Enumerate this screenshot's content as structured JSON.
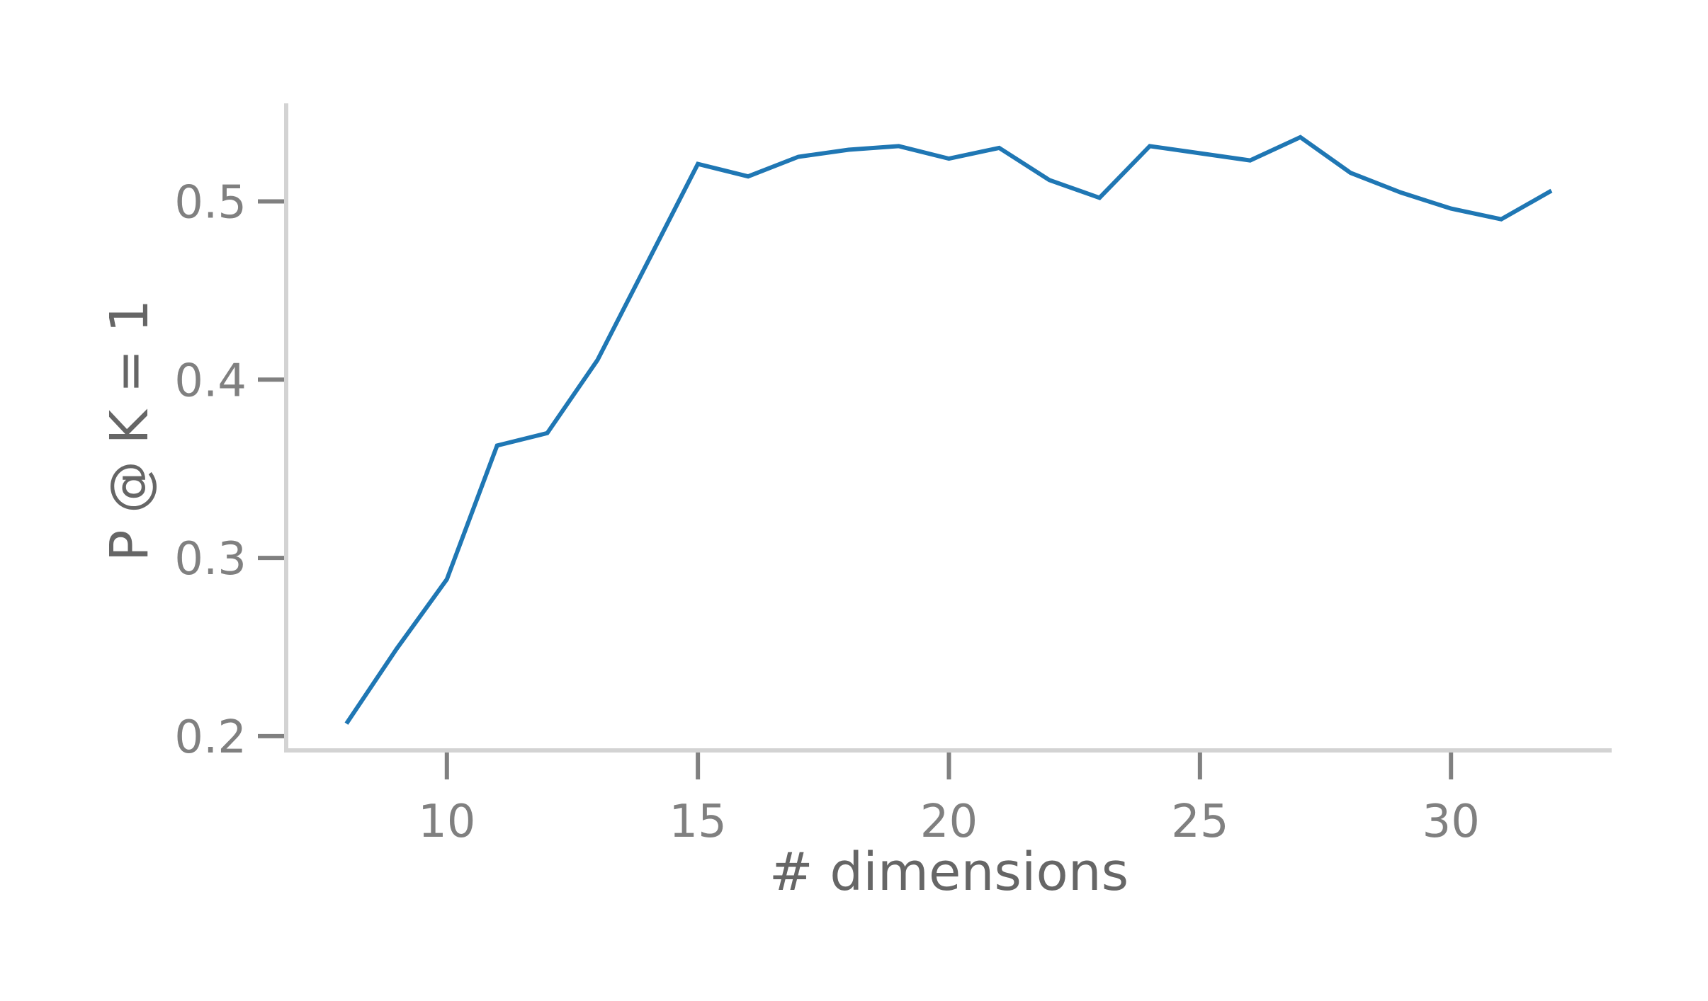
{
  "chart_data": {
    "type": "line",
    "xlabel": "# dimensions",
    "ylabel": "P @ K = 1",
    "xlim": [
      6.8,
      33.2
    ],
    "ylim": [
      0.192,
      0.555
    ],
    "xticks": [
      10,
      15,
      20,
      25,
      30
    ],
    "yticks": [
      0.2,
      0.3,
      0.4,
      0.5
    ],
    "grid": false,
    "series": [
      {
        "color": "#1f77b4",
        "x": [
          8,
          9,
          10,
          11,
          12,
          13,
          14,
          15,
          16,
          17,
          18,
          19,
          20,
          21,
          22,
          23,
          24,
          25,
          26,
          27,
          28,
          29,
          30,
          31,
          32
        ],
        "y": [
          0.207,
          0.249,
          0.288,
          0.363,
          0.37,
          0.411,
          0.466,
          0.521,
          0.514,
          0.525,
          0.529,
          0.531,
          0.524,
          0.53,
          0.512,
          0.502,
          0.531,
          0.527,
          0.523,
          0.536,
          0.516,
          0.505,
          0.496,
          0.49,
          0.506
        ]
      }
    ]
  }
}
